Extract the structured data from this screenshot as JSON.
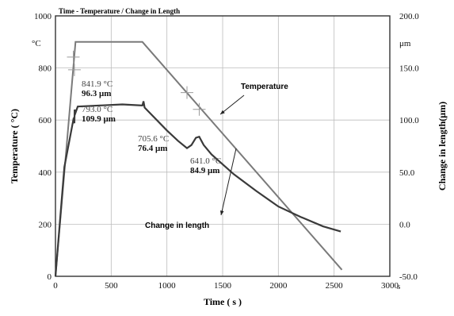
{
  "chart_data": {
    "type": "line",
    "title": "Time - Temperature  /  Change in Length",
    "xlabel": "Time ( s )",
    "x_unit": "s",
    "ylabel_left": "Temperature ( °C)",
    "ylabel_right": "Change in length(μm)",
    "left_unit": "°C",
    "right_unit": "μm",
    "xlim": [
      0,
      3000
    ],
    "ylim_left": [
      0,
      1000
    ],
    "ylim_right": [
      -50,
      200
    ],
    "x_ticks": [
      "0",
      "500",
      "1000",
      "1500",
      "2000",
      "2500",
      "3000"
    ],
    "left_ticks": [
      "0",
      "200",
      "400",
      "600",
      "800",
      "1000"
    ],
    "right_ticks": [
      "-50.0",
      "0.0",
      "50.0",
      "100.0",
      "150.0",
      "200.0"
    ],
    "grid": true,
    "legend": "inline annotations",
    "series": [
      {
        "name": "Temperature",
        "axis": "left",
        "x": [
          0,
          180,
          780,
          2570
        ],
        "y": [
          0,
          900,
          900,
          25
        ]
      },
      {
        "name": "Change in length",
        "axis": "right",
        "x": [
          0,
          80,
          160,
          170,
          172,
          180,
          200,
          400,
          600,
          780,
          790,
          800,
          1000,
          1100,
          1180,
          1220,
          1260,
          1290,
          1330,
          1400,
          1600,
          1800,
          2000,
          2200,
          2400,
          2560
        ],
        "y": [
          -50,
          55,
          100,
          97,
          110,
          107,
          113,
          114,
          115,
          114,
          118,
          112,
          90,
          80,
          73,
          76,
          83,
          84,
          76,
          67,
          48,
          32,
          17,
          7,
          -2,
          -7
        ]
      }
    ],
    "annotations": [
      {
        "temp": "841.9 °C",
        "length": "96.3 μm"
      },
      {
        "temp": "793.0 °C",
        "length": "109.9 μm"
      },
      {
        "temp": "705.6 °C",
        "length": "76.4 μm"
      },
      {
        "temp": "641.0 °C",
        "length": "84.9 μm"
      }
    ],
    "series_labels": {
      "temperature": "Temperature",
      "length": "Change in length"
    }
  }
}
